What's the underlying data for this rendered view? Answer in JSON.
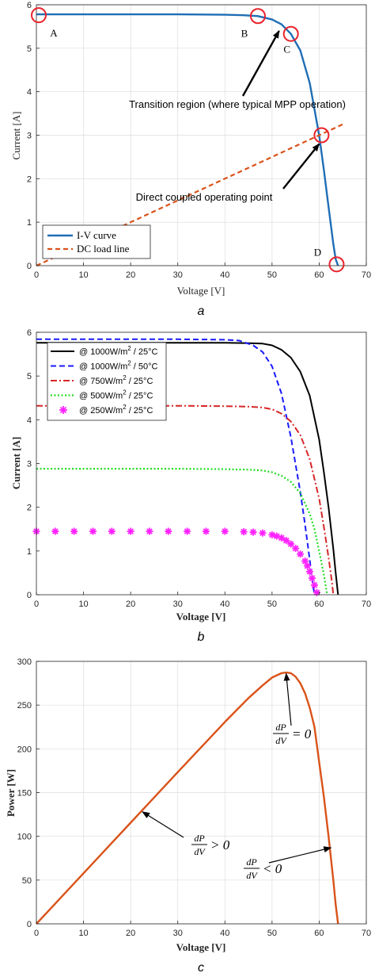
{
  "chart_data": [
    {
      "type": "line",
      "caption": "a",
      "xlabel": "Voltage [V]",
      "ylabel": "Current [A]",
      "xlim": [
        0,
        70
      ],
      "ylim": [
        0,
        6
      ],
      "xticks": [
        "0",
        "10",
        "20",
        "30",
        "40",
        "50",
        "60",
        "70"
      ],
      "yticks": [
        "0",
        "1",
        "2",
        "3",
        "4",
        "5",
        "6"
      ],
      "grid": true,
      "legend_position": "bottom-left",
      "series": [
        {
          "name": "I-V curve",
          "color": "#1f6eb5",
          "style": "solid",
          "x": [
            0,
            10,
            20,
            30,
            40,
            44,
            47,
            50,
            52,
            54,
            56,
            58,
            60,
            61,
            62,
            63,
            63.5,
            64
          ],
          "y": [
            5.78,
            5.78,
            5.78,
            5.78,
            5.77,
            5.76,
            5.74,
            5.66,
            5.55,
            5.33,
            4.95,
            4.2,
            3.0,
            2.2,
            1.35,
            0.5,
            0.15,
            0
          ]
        },
        {
          "name": "DC load line",
          "color": "#d95319",
          "style": "dashed",
          "x": [
            0,
            65
          ],
          "y": [
            0,
            3.25
          ]
        }
      ],
      "points": [
        {
          "label": "A",
          "x": 0.5,
          "y": 5.76
        },
        {
          "label": "B",
          "x": 47,
          "y": 5.74
        },
        {
          "label": "C",
          "x": 54,
          "y": 5.33
        },
        {
          "label": "D",
          "x": 63.7,
          "y": 0.03
        },
        {
          "label": "",
          "x": 60.5,
          "y": 3.0
        }
      ],
      "annotations": [
        {
          "text": "Transition region (where typical MPP operation)",
          "x": 50,
          "y": 4.06,
          "arrow_to": [
            51.5,
            5.4
          ]
        },
        {
          "text": "Direct coupled operating point",
          "x": 57,
          "y": 1.7,
          "arrow_to": [
            60,
            2.8
          ]
        }
      ]
    },
    {
      "type": "line",
      "caption": "b",
      "xlabel": "Voltage [V]",
      "ylabel": "Current [A]",
      "xlim": [
        0,
        70
      ],
      "ylim": [
        0,
        6
      ],
      "xticks": [
        "0",
        "10",
        "20",
        "30",
        "40",
        "50",
        "60",
        "70"
      ],
      "yticks": [
        "0",
        "1",
        "2",
        "3",
        "4",
        "5",
        "6"
      ],
      "grid": false,
      "legend_position": "top-left",
      "series": [
        {
          "name": "@ 1000W/m² / 25°C",
          "legend_main": "@ 1000W/m",
          "legend_tail": " / 25°C",
          "color": "#000000",
          "style": "solid",
          "x": [
            0,
            30,
            40,
            45,
            48,
            50,
            52,
            54,
            56,
            58,
            60,
            61,
            62,
            63,
            63.5,
            64
          ],
          "y": [
            5.76,
            5.76,
            5.76,
            5.75,
            5.74,
            5.7,
            5.6,
            5.42,
            5.1,
            4.55,
            3.55,
            2.8,
            2.0,
            1.05,
            0.5,
            0
          ]
        },
        {
          "name": "@ 1000W/m² / 50°C",
          "legend_main": "@ 1000W/m",
          "legend_tail": " / 50°C",
          "color": "#1a1aff",
          "style": "dashed",
          "x": [
            0,
            30,
            40,
            43,
            46,
            48,
            50,
            52,
            54,
            56,
            57,
            58,
            58.5,
            59
          ],
          "y": [
            5.84,
            5.84,
            5.83,
            5.81,
            5.7,
            5.55,
            5.22,
            4.6,
            3.6,
            2.35,
            1.6,
            0.8,
            0.35,
            0
          ]
        },
        {
          "name": "@ 750W/m² / 25°C",
          "legend_main": "@ 750W/m",
          "legend_tail": " / 25°C",
          "color": "#d62728",
          "style": "dashdot",
          "x": [
            0,
            30,
            40,
            45,
            48,
            50,
            52,
            54,
            56,
            58,
            60,
            61,
            62,
            62.7,
            63
          ],
          "y": [
            4.32,
            4.32,
            4.31,
            4.3,
            4.28,
            4.24,
            4.14,
            3.96,
            3.65,
            3.1,
            2.2,
            1.55,
            0.85,
            0.3,
            0
          ]
        },
        {
          "name": "@ 500W/m² / 25°C",
          "legend_main": "@ 500W/m",
          "legend_tail": " / 25°C",
          "color": "#22dd22",
          "style": "dotted",
          "x": [
            0,
            30,
            40,
            45,
            48,
            50,
            52,
            54,
            56,
            58,
            59,
            60,
            61,
            61.7
          ],
          "y": [
            2.88,
            2.88,
            2.87,
            2.86,
            2.84,
            2.8,
            2.72,
            2.58,
            2.32,
            1.85,
            1.5,
            1.0,
            0.45,
            0
          ]
        },
        {
          "name": "@ 250W/m² / 25°C",
          "legend_main": "@ 250W/m",
          "legend_tail": " / 25°C",
          "color": "#ff22ff",
          "style": "markers",
          "x": [
            0,
            4,
            8,
            12,
            16,
            20,
            24,
            28,
            32,
            36,
            40,
            44,
            46,
            48,
            50,
            51,
            52,
            53,
            54,
            55,
            56,
            57,
            57.5,
            58,
            58.5,
            59,
            59.5
          ],
          "y": [
            1.45,
            1.45,
            1.45,
            1.45,
            1.45,
            1.45,
            1.45,
            1.45,
            1.45,
            1.45,
            1.45,
            1.44,
            1.43,
            1.41,
            1.37,
            1.34,
            1.3,
            1.24,
            1.16,
            1.06,
            0.93,
            0.77,
            0.66,
            0.53,
            0.38,
            0.22,
            0.05
          ]
        }
      ]
    },
    {
      "type": "line",
      "caption": "c",
      "xlabel": "Voltage [V]",
      "ylabel": "Power [W]",
      "xlim": [
        0,
        70
      ],
      "ylim": [
        0,
        300
      ],
      "xticks": [
        "0",
        "10",
        "20",
        "30",
        "40",
        "50",
        "60",
        "70"
      ],
      "yticks": [
        "0",
        "50",
        "100",
        "150",
        "200",
        "250",
        "300"
      ],
      "grid": true,
      "series": [
        {
          "name": "",
          "color": "#d95319",
          "style": "solid",
          "x": [
            0,
            10,
            20,
            30,
            40,
            45,
            48,
            50,
            52,
            53,
            54,
            55,
            56,
            57,
            58,
            59,
            60,
            61,
            62,
            63,
            63.5,
            64
          ],
          "y": [
            0,
            57.8,
            115.6,
            173.4,
            230.8,
            258,
            272.5,
            281.5,
            286.5,
            287.3,
            286.5,
            282.5,
            275,
            263.5,
            247,
            225,
            185,
            145,
            100,
            50,
            22,
            0
          ]
        }
      ],
      "annotations": [
        {
          "num": "dP",
          "den": "dV",
          "rel": "= 0",
          "x": 53,
          "y": 207,
          "arrow_to": [
            53,
            286
          ]
        },
        {
          "num": "dP",
          "den": "dV",
          "rel": "> 0",
          "x": 33,
          "y": 91,
          "arrow_to": [
            22.5,
            128
          ]
        },
        {
          "num": "dP",
          "den": "dV",
          "rel": "< 0",
          "x": 48,
          "y": 30,
          "arrow_to": [
            62.5,
            87
          ]
        }
      ]
    }
  ]
}
